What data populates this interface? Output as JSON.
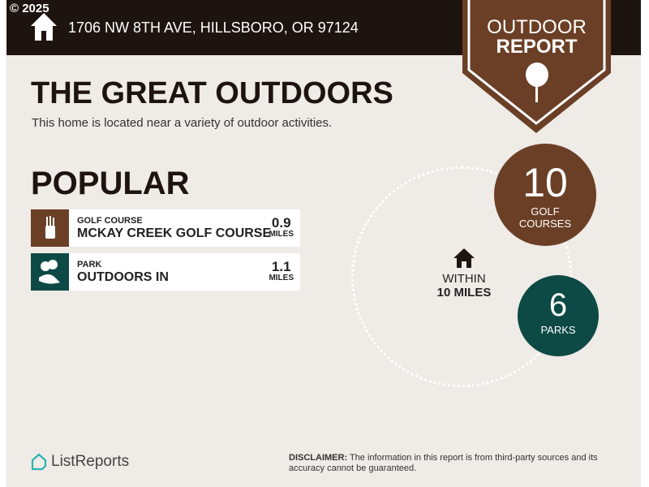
{
  "copyright": "© 2025",
  "header": {
    "address": "1706 NW 8TH AVE, HILLSBORO, OR 97124"
  },
  "badge": {
    "line1": "OUTDOOR",
    "line2": "REPORT",
    "icon": "tree-icon"
  },
  "title": "THE GREAT OUTDOORS",
  "subtitle": "This home is located near a variety of outdoor activities.",
  "popular": {
    "heading": "POPULAR",
    "items": [
      {
        "category": "GOLF COURSE",
        "name": "MCKAY CREEK GOLF COURSE",
        "distance": "0.9",
        "unit": "MILES",
        "icon": "golf-bag-icon",
        "color": "#6b3f26"
      },
      {
        "category": "PARK",
        "name": "OUTDOORS IN",
        "distance": "1.1",
        "unit": "MILES",
        "icon": "park-trees-icon",
        "color": "#0d4a45"
      }
    ]
  },
  "summary": {
    "within": "WITHIN",
    "radius": "10 MILES",
    "golf": {
      "count": "10",
      "label1": "GOLF",
      "label2": "COURSES",
      "color": "#6b3f26"
    },
    "parks": {
      "count": "6",
      "label": "PARKS",
      "color": "#0d4a45"
    }
  },
  "footer": {
    "logo": "ListReports",
    "disclaimer_label": "DISCLAIMER:",
    "disclaimer": " The information in this report is from third-party sources and its accuracy cannot be guaranteed."
  }
}
